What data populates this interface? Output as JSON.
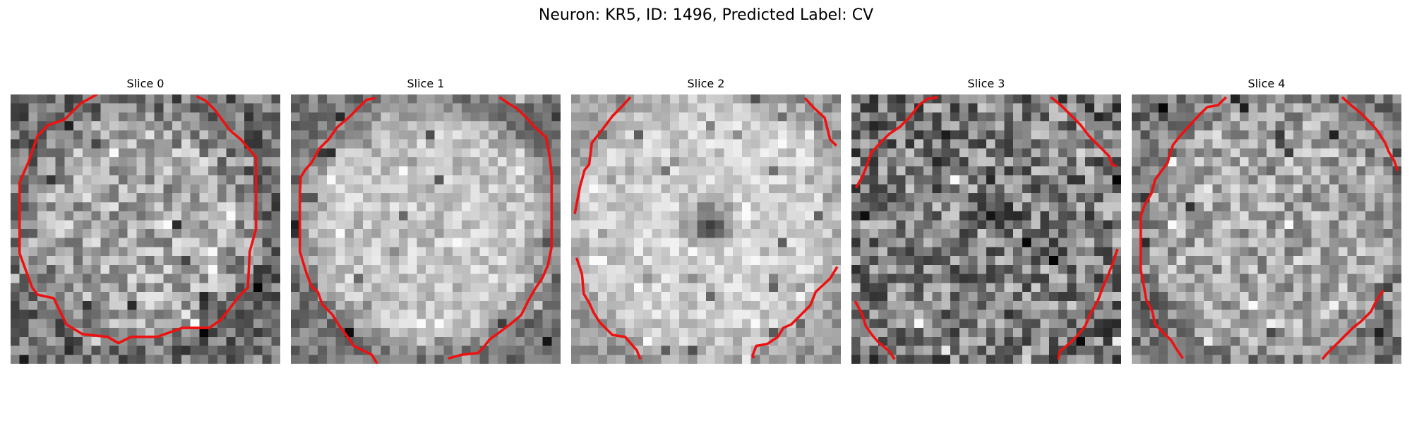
{
  "figure": {
    "title": "Neuron: KR5, ID: 1496, Predicted Label: CV"
  },
  "panels": [
    {
      "title": "Slice 0",
      "ring_color": "#ee1111"
    },
    {
      "title": "Slice 1",
      "ring_color": "#ee1111"
    },
    {
      "title": "Slice 2",
      "ring_color": "#ee1111"
    },
    {
      "title": "Slice 3",
      "ring_color": "#ee1111"
    },
    {
      "title": "Slice 4",
      "ring_color": "#ee1111"
    }
  ],
  "colormap": "grayscale"
}
